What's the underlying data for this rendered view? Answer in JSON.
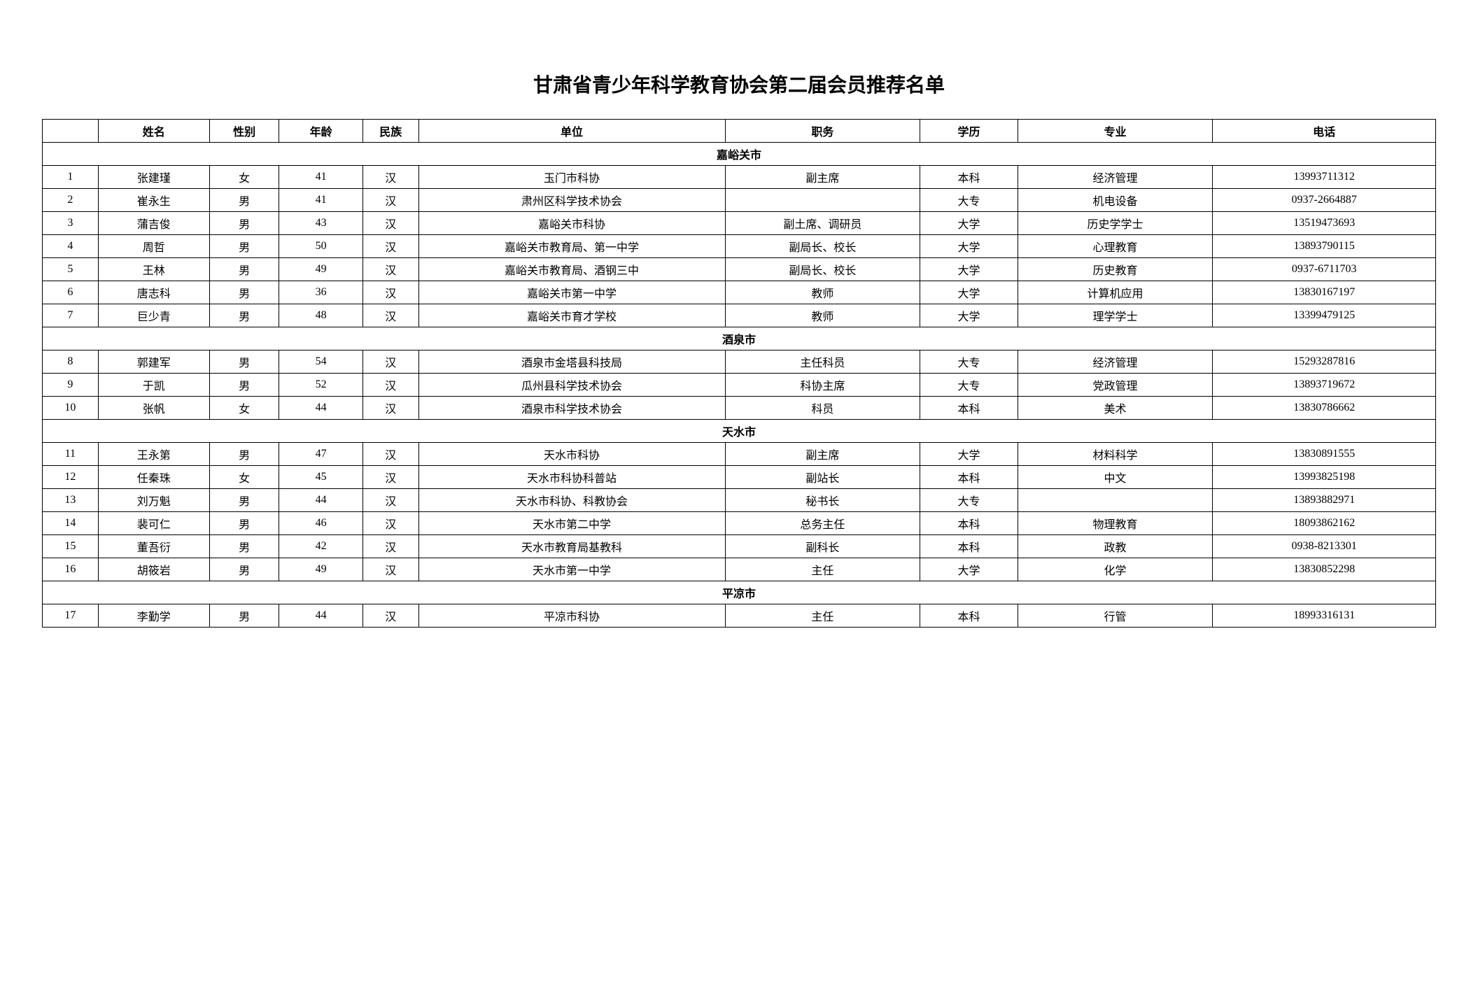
{
  "title": "甘肃省青少年科学教育协会第二届会员推荐名单",
  "headers": {
    "idx": "",
    "name": "姓名",
    "gender": "性别",
    "age": "年龄",
    "ethnic": "民族",
    "unit": "单位",
    "position": "职务",
    "edu": "学历",
    "major": "专业",
    "phone": "电话"
  },
  "sections": [
    {
      "label": "嘉峪关市",
      "rows": [
        {
          "idx": "1",
          "name": "张建瑾",
          "gender": "女",
          "age": "41",
          "ethnic": "汉",
          "unit": "玉门市科协",
          "position": "副主席",
          "edu": "本科",
          "major": "经济管理",
          "phone": "13993711312"
        },
        {
          "idx": "2",
          "name": "崔永生",
          "gender": "男",
          "age": "41",
          "ethnic": "汉",
          "unit": "肃州区科学技术协会",
          "position": "",
          "edu": "大专",
          "major": "机电设备",
          "phone": "0937-2664887"
        },
        {
          "idx": "3",
          "name": "蒲吉俊",
          "gender": "男",
          "age": "43",
          "ethnic": "汉",
          "unit": "嘉峪关市科协",
          "position": "副土席、调研员",
          "edu": "大学",
          "major": "历史学学士",
          "phone": "13519473693"
        },
        {
          "idx": "4",
          "name": "周哲",
          "gender": "男",
          "age": "50",
          "ethnic": "汉",
          "unit": "嘉峪关市教育局、第一中学",
          "position": "副局长、校长",
          "edu": "大学",
          "major": "心理教育",
          "phone": "13893790115"
        },
        {
          "idx": "5",
          "name": "王林",
          "gender": "男",
          "age": "49",
          "ethnic": "汉",
          "unit": "嘉峪关市教育局、酒钢三中",
          "position": "副局长、校长",
          "edu": "大学",
          "major": "历史教育",
          "phone": "0937-6711703"
        },
        {
          "idx": "6",
          "name": "唐志科",
          "gender": "男",
          "age": "36",
          "ethnic": "汉",
          "unit": "嘉峪关市第一中学",
          "position": "教师",
          "edu": "大学",
          "major": "计算机应用",
          "phone": "13830167197"
        },
        {
          "idx": "7",
          "name": "巨少青",
          "gender": "男",
          "age": "48",
          "ethnic": "汉",
          "unit": "嘉峪关市育才学校",
          "position": "教师",
          "edu": "大学",
          "major": "理学学士",
          "phone": "13399479125"
        }
      ]
    },
    {
      "label": "酒泉市",
      "rows": [
        {
          "idx": "8",
          "name": "郭建军",
          "gender": "男",
          "age": "54",
          "ethnic": "汉",
          "unit": "酒泉市金塔县科技局",
          "position": "主任科员",
          "edu": "大专",
          "major": "经济管理",
          "phone": "15293287816"
        },
        {
          "idx": "9",
          "name": "于凯",
          "gender": "男",
          "age": "52",
          "ethnic": "汉",
          "unit": "瓜州县科学技术协会",
          "position": "科协主席",
          "edu": "大专",
          "major": "党政管理",
          "phone": "13893719672"
        },
        {
          "idx": "10",
          "name": "张帆",
          "gender": "女",
          "age": "44",
          "ethnic": "汉",
          "unit": "酒泉市科学技术协会",
          "position": "科员",
          "edu": "本科",
          "major": "美术",
          "phone": "13830786662"
        }
      ]
    },
    {
      "label": "天水市",
      "rows": [
        {
          "idx": "11",
          "name": "王永第",
          "gender": "男",
          "age": "47",
          "ethnic": "汉",
          "unit": "天水市科协",
          "position": "副主席",
          "edu": "大学",
          "major": "材料科学",
          "phone": "13830891555"
        },
        {
          "idx": "12",
          "name": "任秦珠",
          "gender": "女",
          "age": "45",
          "ethnic": "汉",
          "unit": "天水市科协科普站",
          "position": "副站长",
          "edu": "本科",
          "major": "中文",
          "phone": "13993825198"
        },
        {
          "idx": "13",
          "name": "刘万魁",
          "gender": "男",
          "age": "44",
          "ethnic": "汉",
          "unit": "天水市科协、科教协会",
          "position": "秘书长",
          "edu": "大专",
          "major": "",
          "phone": "13893882971"
        },
        {
          "idx": "14",
          "name": "裴可仁",
          "gender": "男",
          "age": "46",
          "ethnic": "汉",
          "unit": "天水市第二中学",
          "position": "总务主任",
          "edu": "本科",
          "major": "物理教育",
          "phone": "18093862162"
        },
        {
          "idx": "15",
          "name": "董吾衍",
          "gender": "男",
          "age": "42",
          "ethnic": "汉",
          "unit": "天水市教育局基教科",
          "position": "副科长",
          "edu": "本科",
          "major": "政教",
          "phone": "0938-8213301"
        },
        {
          "idx": "16",
          "name": "胡筱岩",
          "gender": "男",
          "age": "49",
          "ethnic": "汉",
          "unit": "天水市第一中学",
          "position": "主任",
          "edu": "大学",
          "major": "化学",
          "phone": "13830852298"
        }
      ]
    },
    {
      "label": "平凉市",
      "rows": [
        {
          "idx": "17",
          "name": "李勤学",
          "gender": "男",
          "age": "44",
          "ethnic": "汉",
          "unit": "平凉市科协",
          "position": "主任",
          "edu": "本科",
          "major": "行管",
          "phone": "18993316131"
        }
      ]
    }
  ],
  "styling": {
    "background_color": "#ffffff",
    "border_color": "#000000",
    "title_fontsize": 28,
    "cell_fontsize": 16,
    "font_family": "SimSun"
  }
}
